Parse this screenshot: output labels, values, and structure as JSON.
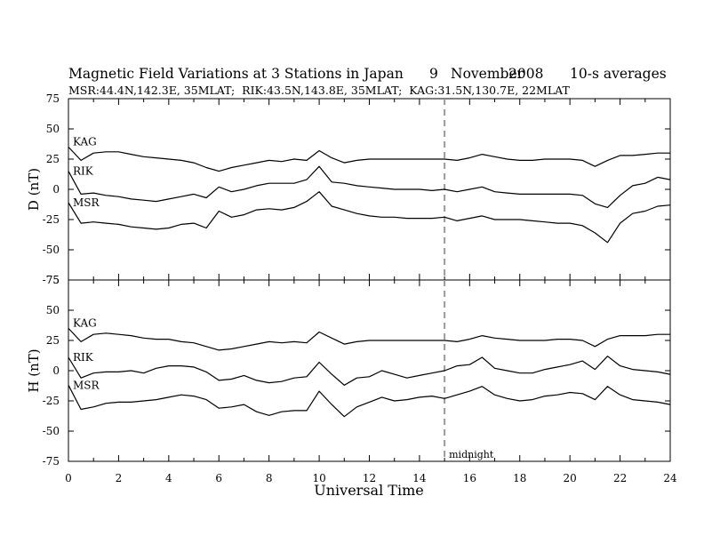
{
  "header": {
    "title": "Magnetic Field Variations at 3 Stations in Japan",
    "day": "9",
    "month": "November",
    "year": "2008",
    "averaging": "10-s averages",
    "stations_line": "MSR:44.4N,142.3E, 35MLAT;  RIK:43.5N,143.8E, 35MLAT;  KAG:31.5N,130.7E, 22MLAT"
  },
  "chart_data": [
    {
      "type": "line",
      "panel": "D",
      "ylabel": "D (nT)",
      "ylim": [
        -75,
        75
      ],
      "yticks": [
        -75,
        -50,
        -25,
        0,
        25,
        50,
        75
      ],
      "xlim": [
        0,
        24
      ],
      "x": [
        0,
        0.5,
        1,
        1.5,
        2,
        2.5,
        3,
        3.5,
        4,
        4.5,
        5,
        5.5,
        6,
        6.5,
        7,
        7.5,
        8,
        8.5,
        9,
        9.5,
        10,
        10.5,
        11,
        11.5,
        12,
        12.5,
        13,
        13.5,
        14,
        14.5,
        15,
        15.5,
        16,
        16.5,
        17,
        17.5,
        18,
        18.5,
        19,
        19.5,
        20,
        20.5,
        21,
        21.5,
        22,
        22.5,
        23,
        23.5,
        24
      ],
      "series": [
        {
          "name": "KAG",
          "values": [
            35,
            24,
            30,
            31,
            31,
            29,
            27,
            26,
            25,
            24,
            22,
            18,
            15,
            18,
            20,
            22,
            24,
            23,
            25,
            24,
            32,
            26,
            22,
            24,
            25,
            25,
            25,
            25,
            25,
            25,
            25,
            24,
            26,
            29,
            27,
            25,
            24,
            24,
            25,
            25,
            25,
            24,
            19,
            24,
            28,
            28,
            29,
            30,
            30
          ]
        },
        {
          "name": "RIK",
          "values": [
            15,
            -4,
            -3,
            -5,
            -6,
            -8,
            -9,
            -10,
            -8,
            -6,
            -4,
            -7,
            2,
            -2,
            0,
            3,
            5,
            5,
            5,
            8,
            19,
            6,
            5,
            3,
            2,
            1,
            0,
            0,
            0,
            -1,
            0,
            -2,
            0,
            2,
            -2,
            -3,
            -4,
            -4,
            -4,
            -4,
            -4,
            -5,
            -12,
            -15,
            -5,
            3,
            5,
            10,
            8
          ]
        },
        {
          "name": "MSR",
          "values": [
            -11,
            -28,
            -27,
            -28,
            -29,
            -31,
            -32,
            -33,
            -32,
            -29,
            -28,
            -32,
            -18,
            -23,
            -21,
            -17,
            -16,
            -17,
            -15,
            -10,
            -2,
            -14,
            -17,
            -20,
            -22,
            -23,
            -23,
            -24,
            -24,
            -24,
            -23,
            -26,
            -24,
            -22,
            -25,
            -25,
            -25,
            -26,
            -27,
            -28,
            -28,
            -30,
            -36,
            -44,
            -28,
            -20,
            -18,
            -14,
            -13
          ]
        }
      ]
    },
    {
      "type": "line",
      "panel": "H",
      "ylabel": "H (nT)",
      "ylim": [
        -75,
        75
      ],
      "yticks": [
        -75,
        -50,
        -25,
        0,
        25,
        50,
        75
      ],
      "xlabel": "Universal Time",
      "xlim": [
        0,
        24
      ],
      "xticks": [
        0,
        2,
        4,
        6,
        8,
        10,
        12,
        14,
        16,
        18,
        20,
        22,
        24
      ],
      "x": [
        0,
        0.5,
        1,
        1.5,
        2,
        2.5,
        3,
        3.5,
        4,
        4.5,
        5,
        5.5,
        6,
        6.5,
        7,
        7.5,
        8,
        8.5,
        9,
        9.5,
        10,
        10.5,
        11,
        11.5,
        12,
        12.5,
        13,
        13.5,
        14,
        14.5,
        15,
        15.5,
        16,
        16.5,
        17,
        17.5,
        18,
        18.5,
        19,
        19.5,
        20,
        20.5,
        21,
        21.5,
        22,
        22.5,
        23,
        23.5,
        24
      ],
      "series": [
        {
          "name": "KAG",
          "values": [
            35,
            24,
            30,
            31,
            30,
            29,
            27,
            26,
            26,
            24,
            23,
            20,
            17,
            18,
            20,
            22,
            24,
            23,
            24,
            23,
            32,
            27,
            22,
            24,
            25,
            25,
            25,
            25,
            25,
            25,
            25,
            24,
            26,
            29,
            27,
            26,
            25,
            25,
            25,
            26,
            26,
            25,
            20,
            26,
            29,
            29,
            29,
            30,
            30
          ]
        },
        {
          "name": "RIK",
          "values": [
            11,
            -6,
            -2,
            -1,
            -1,
            0,
            -2,
            2,
            4,
            4,
            3,
            -1,
            -8,
            -7,
            -4,
            -8,
            -10,
            -9,
            -6,
            -5,
            7,
            -3,
            -12,
            -6,
            -5,
            0,
            -3,
            -6,
            -4,
            -2,
            0,
            4,
            5,
            11,
            2,
            0,
            -2,
            -2,
            1,
            3,
            5,
            8,
            1,
            12,
            4,
            1,
            0,
            -1,
            -3
          ]
        },
        {
          "name": "MSR",
          "values": [
            -12,
            -32,
            -30,
            -27,
            -26,
            -26,
            -25,
            -24,
            -22,
            -20,
            -21,
            -24,
            -31,
            -30,
            -28,
            -34,
            -37,
            -34,
            -33,
            -33,
            -17,
            -28,
            -38,
            -30,
            -26,
            -22,
            -25,
            -24,
            -22,
            -21,
            -23,
            -20,
            -17,
            -13,
            -20,
            -23,
            -25,
            -24,
            -21,
            -20,
            -18,
            -19,
            -24,
            -13,
            -20,
            -24,
            -25,
            -26,
            -28
          ]
        }
      ]
    }
  ],
  "annotations": {
    "midnight_x": 15,
    "midnight_label": "midnight"
  }
}
